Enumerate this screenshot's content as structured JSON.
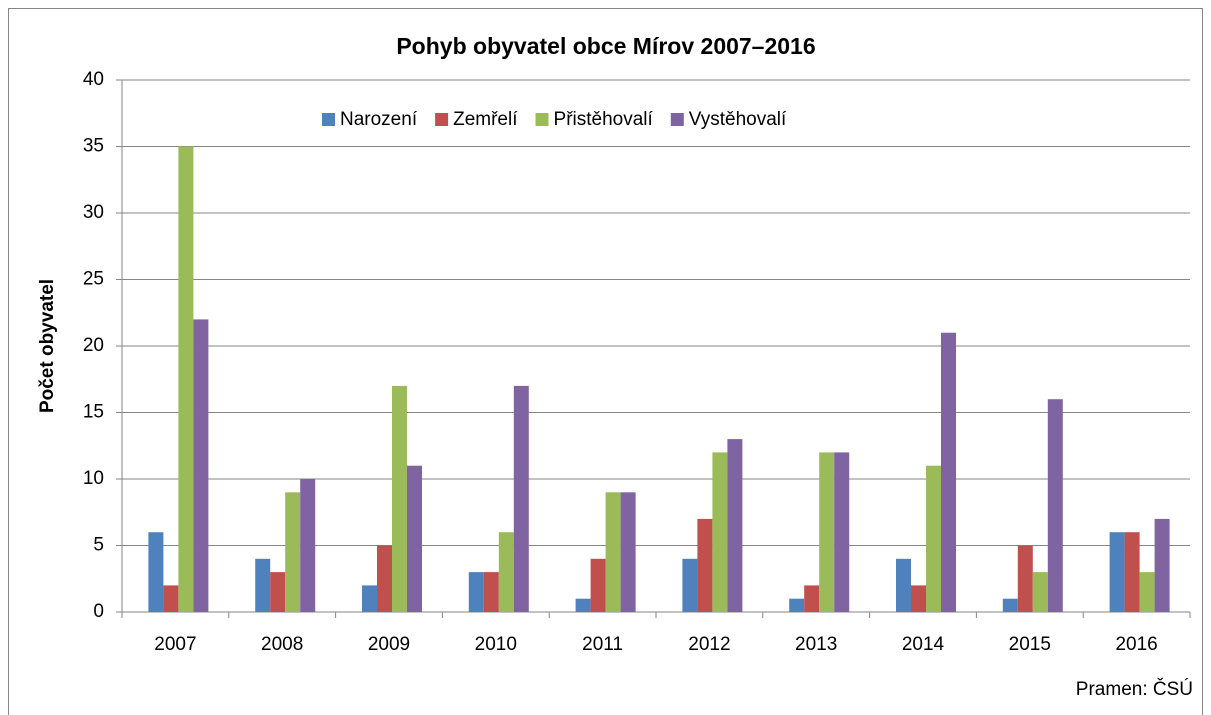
{
  "chart_data": {
    "type": "bar",
    "title": "Pohyb obyvatel obce Mírov 2007–2016",
    "y_label": "Počet obyvatel",
    "source": "Pramen: ČSÚ",
    "categories": [
      "2007",
      "2008",
      "2009",
      "2010",
      "2011",
      "2012",
      "2013",
      "2014",
      "2015",
      "2016"
    ],
    "series": [
      {
        "name": "Narození",
        "color": "#4f81bd",
        "values": [
          6,
          4,
          2,
          3,
          1,
          4,
          1,
          4,
          1,
          6
        ]
      },
      {
        "name": "Zemřelí",
        "color": "#c0504d",
        "values": [
          2,
          3,
          5,
          3,
          4,
          7,
          2,
          2,
          5,
          6
        ]
      },
      {
        "name": "Přistěhovalí",
        "color": "#9bbb59",
        "values": [
          35,
          9,
          17,
          6,
          9,
          12,
          12,
          11,
          3,
          3
        ]
      },
      {
        "name": "Vystěhovalí",
        "color": "#8064a2",
        "values": [
          22,
          10,
          11,
          17,
          9,
          13,
          12,
          21,
          16,
          7
        ]
      }
    ],
    "ylim": [
      0,
      40
    ],
    "yticks": [
      0,
      5,
      10,
      15,
      20,
      25,
      30,
      35,
      40
    ],
    "grid": true,
    "legend": "top"
  }
}
